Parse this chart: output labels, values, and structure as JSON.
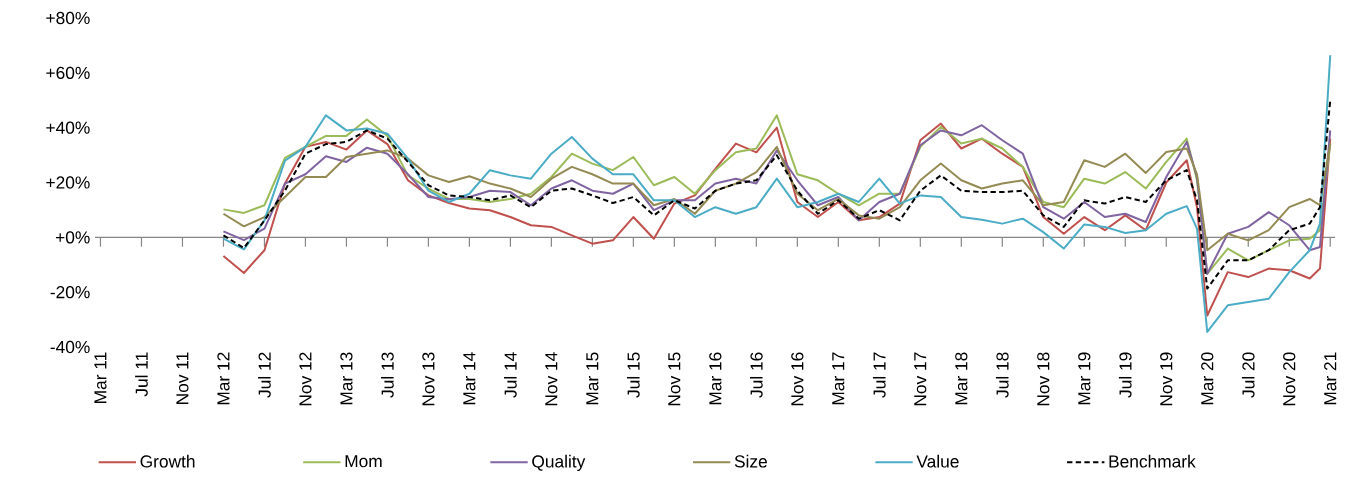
{
  "chart_data": {
    "type": "line",
    "x": [
      "2012-03",
      "2012-05",
      "2012-07",
      "2012-09",
      "2012-11",
      "2013-01",
      "2013-03",
      "2013-05",
      "2013-07",
      "2013-09",
      "2013-11",
      "2014-01",
      "2014-03",
      "2014-05",
      "2014-07",
      "2014-09",
      "2014-11",
      "2015-01",
      "2015-03",
      "2015-05",
      "2015-07",
      "2015-09",
      "2015-11",
      "2016-01",
      "2016-03",
      "2016-05",
      "2016-07",
      "2016-09",
      "2016-11",
      "2017-01",
      "2017-03",
      "2017-05",
      "2017-07",
      "2017-09",
      "2017-11",
      "2018-01",
      "2018-03",
      "2018-05",
      "2018-07",
      "2018-09",
      "2018-11",
      "2019-01",
      "2019-03",
      "2019-05",
      "2019-07",
      "2019-09",
      "2019-11",
      "2020-01",
      "2020-02",
      "2020-03",
      "2020-05",
      "2020-07",
      "2020-09",
      "2020-11",
      "2021-01",
      "2021-02",
      "2021-03"
    ],
    "series": [
      {
        "name": "Growth",
        "color": "#c0504d",
        "values": [
          -6.8,
          -13,
          -4.7,
          19.6,
          33,
          34.8,
          32,
          39,
          34,
          20.8,
          15.3,
          12.5,
          10.5,
          9.9,
          7.4,
          4.4,
          3.8,
          0.7,
          -2.3,
          -1.1,
          7.4,
          -0.5,
          12.3,
          15.3,
          25,
          34.2,
          31,
          40,
          12.9,
          7.4,
          12.9,
          6.2,
          7.4,
          12.3,
          35.4,
          41.5,
          32.4,
          36,
          30.5,
          25.7,
          7.4,
          1.3,
          7.4,
          2.6,
          8,
          2.6,
          20,
          28.1,
          11,
          -28.5,
          -12.7,
          -14.5,
          -11.4,
          -12,
          -15,
          -11.4,
          36
        ]
      },
      {
        "name": "Mom",
        "color": "#9bbb59",
        "values": [
          10.2,
          8.9,
          11.7,
          29,
          33,
          37,
          37,
          43,
          37,
          22.6,
          17.8,
          14,
          14,
          12.9,
          14,
          15.9,
          22,
          30.5,
          26.9,
          24.5,
          29.3,
          19,
          22,
          15.9,
          24.5,
          31,
          32.4,
          44.5,
          23,
          20.8,
          15.9,
          11.7,
          15.9,
          15.9,
          33,
          40.3,
          34.2,
          36,
          32.4,
          25.7,
          12.9,
          11,
          21.4,
          19.6,
          23.8,
          17.8,
          27.5,
          36,
          20.8,
          -13.3,
          -4.1,
          -8.4,
          -4.7,
          -1.1,
          -0.5,
          2.6,
          34.2
        ]
      },
      {
        "name": "Quality",
        "color": "#8064a2",
        "values": [
          2.2,
          -1,
          3.2,
          19.6,
          23,
          29.6,
          27.5,
          32.7,
          30.5,
          23,
          14.7,
          13.9,
          14.7,
          17,
          16.5,
          11.7,
          17.8,
          20.8,
          17,
          15.9,
          19.6,
          9.9,
          13.5,
          13.5,
          19.6,
          21.4,
          19.6,
          31.7,
          20.8,
          11.7,
          14.7,
          6.2,
          12.9,
          15.9,
          33.6,
          39,
          37.2,
          40.9,
          35.4,
          30.5,
          11,
          6.8,
          12.9,
          7.4,
          8.6,
          5.6,
          22,
          34.8,
          22,
          -13.3,
          1.3,
          3.8,
          9.2,
          4.4,
          -4.7,
          -3.5,
          39
        ]
      },
      {
        "name": "Size",
        "color": "#948a54",
        "values": [
          8.6,
          4,
          7.4,
          14.7,
          22,
          22,
          29.3,
          30.5,
          31.7,
          28.7,
          22.6,
          20.2,
          22.3,
          19.6,
          17.8,
          14.7,
          21.4,
          25.7,
          23,
          19.6,
          19.6,
          11.7,
          14,
          8.6,
          17,
          19.6,
          23.8,
          33,
          15.9,
          9.9,
          14,
          8,
          6.8,
          11,
          20.8,
          26.9,
          20.8,
          17.8,
          19.6,
          20.8,
          11.7,
          12.9,
          28.1,
          25.7,
          30.5,
          23.5,
          31.1,
          32.4,
          23,
          -4.7,
          1.3,
          -1.1,
          2.6,
          11,
          14,
          11.7,
          34.2
        ]
      },
      {
        "name": "Value",
        "color": "#4bacc6",
        "values": [
          -0.5,
          -4.4,
          6.2,
          28,
          33,
          44.5,
          39,
          39.7,
          37.8,
          28.7,
          17,
          12.9,
          15.9,
          24.5,
          22.6,
          21.4,
          30.5,
          36.6,
          28.7,
          23,
          23,
          13.5,
          13.5,
          7.4,
          11,
          8.6,
          11,
          21.4,
          11,
          12.9,
          15.9,
          12.9,
          21.4,
          12.3,
          15.3,
          14.7,
          7.4,
          6.4,
          5,
          6.8,
          1.9,
          -4.1,
          4.7,
          3.8,
          1.6,
          2.6,
          8.6,
          11.4,
          3.2,
          -34.5,
          -24.8,
          -23.6,
          -22.4,
          -12.7,
          -4.7,
          5,
          66.4
        ]
      },
      {
        "name": "Benchmark",
        "color": "#000000",
        "line_style": "dashed",
        "values": [
          0.7,
          -3.9,
          6.2,
          17,
          30.5,
          34,
          34.8,
          39,
          36,
          27.5,
          19,
          15.3,
          14.7,
          13.5,
          15.3,
          11,
          17,
          17.8,
          15.3,
          12.5,
          14.7,
          8,
          13.5,
          10.5,
          17,
          19.6,
          20.8,
          29.9,
          17,
          8.6,
          13.5,
          6.8,
          9.9,
          6.2,
          17,
          22.6,
          17,
          16.5,
          16.5,
          17,
          8,
          3.8,
          13.5,
          12.3,
          14.7,
          12.9,
          20.8,
          24.5,
          13.5,
          -18.7,
          -8.4,
          -8.4,
          -4.7,
          2.6,
          5,
          11,
          50
        ]
      }
    ],
    "xlim": [
      "2011-02-15",
      "2021-03-15"
    ],
    "xticks": [
      {
        "value": "2011-03",
        "label": "Mar 11"
      },
      {
        "value": "2011-07",
        "label": "Jul 11"
      },
      {
        "value": "2011-11",
        "label": "Nov 11"
      },
      {
        "value": "2012-03",
        "label": "Mar 12"
      },
      {
        "value": "2012-07",
        "label": "Jul 12"
      },
      {
        "value": "2012-11",
        "label": "Nov 12"
      },
      {
        "value": "2013-03",
        "label": "Mar 13"
      },
      {
        "value": "2013-07",
        "label": "Jul 13"
      },
      {
        "value": "2013-11",
        "label": "Nov 13"
      },
      {
        "value": "2014-03",
        "label": "Mar 14"
      },
      {
        "value": "2014-07",
        "label": "Jul 14"
      },
      {
        "value": "2014-11",
        "label": "Nov 14"
      },
      {
        "value": "2015-03",
        "label": "Mar 15"
      },
      {
        "value": "2015-07",
        "label": "Jul 15"
      },
      {
        "value": "2015-11",
        "label": "Nov 15"
      },
      {
        "value": "2016-03",
        "label": "Mar 16"
      },
      {
        "value": "2016-07",
        "label": "Jul 16"
      },
      {
        "value": "2016-11",
        "label": "Nov 16"
      },
      {
        "value": "2017-03",
        "label": "Mar 17"
      },
      {
        "value": "2017-07",
        "label": "Jul 17"
      },
      {
        "value": "2017-11",
        "label": "Nov 17"
      },
      {
        "value": "2018-03",
        "label": "Mar 18"
      },
      {
        "value": "2018-07",
        "label": "Jul 18"
      },
      {
        "value": "2018-11",
        "label": "Nov 18"
      },
      {
        "value": "2019-03",
        "label": "Mar 19"
      },
      {
        "value": "2019-07",
        "label": "Jul 19"
      },
      {
        "value": "2019-11",
        "label": "Nov 19"
      },
      {
        "value": "2020-03",
        "label": "Mar 20"
      },
      {
        "value": "2020-07",
        "label": "Jul 20"
      },
      {
        "value": "2020-11",
        "label": "Nov 20"
      },
      {
        "value": "2021-03",
        "label": "Mar 21"
      }
    ],
    "ylim": [
      -40,
      80
    ],
    "yticks": [
      {
        "value": -40,
        "label": "-40%"
      },
      {
        "value": -20,
        "label": "-20%"
      },
      {
        "value": 0,
        "label": "+0%"
      },
      {
        "value": 20,
        "label": "+20%"
      },
      {
        "value": 40,
        "label": "+40%"
      },
      {
        "value": 60,
        "label": "+60%"
      },
      {
        "value": 80,
        "label": "+80%"
      }
    ],
    "legend": "bottom"
  }
}
